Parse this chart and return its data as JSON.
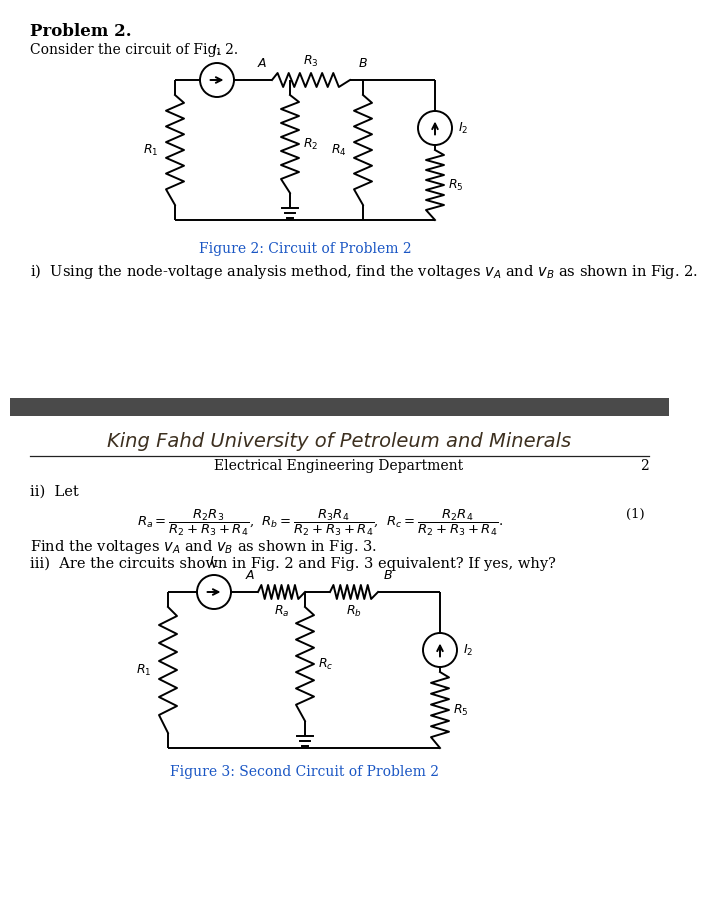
{
  "title": "Problem 2.",
  "subtitle": "Consider the circuit of Fig. 2.",
  "fig2_caption": "Figure 2: Circuit of Problem 2",
  "fig3_caption": "Figure 3: Second Circuit of Problem 2",
  "part_i": "i)  Using the node-voltage analysis method, find the voltages $v_A$ and $v_B$ as shown in Fig. 2.",
  "part_ii_intro": "ii)  Let",
  "part_ii_find": "Find the voltages $v_A$ and $v_B$ as shown in Fig. 3.",
  "part_iii": "iii)  Are the circuits shown in Fig. 2 and Fig. 3 equivalent? If yes, why?",
  "header_script": "King Fahd University of Petroleum and Minerals",
  "header_dept": "Electrical Engineering Department",
  "header_page": "2",
  "bg_color": "#ffffff",
  "text_color": "#000000",
  "divider_color": "#4a4a4a",
  "fig_caption_color": "#1a56c4",
  "line_color": "#333333",
  "circuit_lw": 1.4,
  "text_fontsize": 10.5,
  "label_fontsize": 9,
  "caption_fontsize": 10,
  "header_script_fontsize": 14,
  "header_dept_fontsize": 10
}
